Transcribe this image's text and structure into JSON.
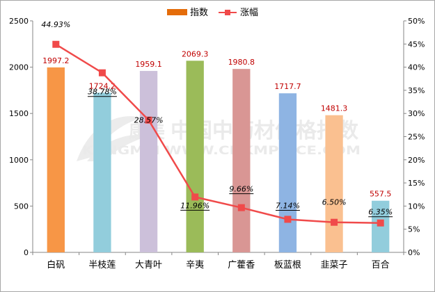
{
  "chart_data": {
    "type": "bar+line",
    "categories": [
      "白矾",
      "半枝莲",
      "大青叶",
      "辛夷",
      "广藿香",
      "板蓝根",
      "韭菜子",
      "百合"
    ],
    "series": [
      {
        "name": "指数",
        "type": "bar",
        "axis": "left",
        "values": [
          1997.2,
          1724.2,
          1959.1,
          2069.3,
          1980.8,
          1717.7,
          1481.3,
          557.5
        ],
        "labels": [
          "1997.2",
          "1724.2",
          "1959.1",
          "2069.3",
          "1980.8",
          "1717.7",
          "1481.3",
          "557.5"
        ],
        "colors": [
          "#f79646",
          "#92cddc",
          "#ccc0da",
          "#9bbb59",
          "#d99694",
          "#8eb4e3",
          "#fac090",
          "#92cddc"
        ]
      },
      {
        "name": "涨幅",
        "type": "line",
        "axis": "right",
        "values": [
          44.93,
          38.78,
          28.57,
          11.96,
          9.66,
          7.14,
          6.5,
          6.35
        ],
        "labels": [
          "44.93%",
          "38.78%",
          "28.57%",
          "11.96%",
          "9.66%",
          "7.14%",
          "6.50%",
          "6.35%"
        ],
        "underlined": [
          false,
          true,
          false,
          true,
          true,
          true,
          false,
          true
        ],
        "color": "#f04a4a"
      }
    ],
    "y_left": {
      "min": 0,
      "max": 2500,
      "ticks": [
        "0",
        "500",
        "1000",
        "1500",
        "2000",
        "2500"
      ]
    },
    "y_right": {
      "min": 0,
      "max": 50,
      "ticks": [
        "0%",
        "5%",
        "10%",
        "15%",
        "20%",
        "25%",
        "30%",
        "35%",
        "40%",
        "45%",
        "50%"
      ]
    },
    "legend": {
      "position": "top-center",
      "items": [
        "指数",
        "涨幅"
      ]
    },
    "watermark": {
      "logo_text": "康美",
      "text_cn": "中国中药材价格指数",
      "text_en": "KANGMEI   WWW.CNKMPRICE.COM"
    },
    "colors": {
      "bar_legend": "#e46c0a",
      "line": "#f04a4a",
      "value_label": "#c00000",
      "axis_text": "#000000",
      "axis_line": "#868686"
    }
  }
}
